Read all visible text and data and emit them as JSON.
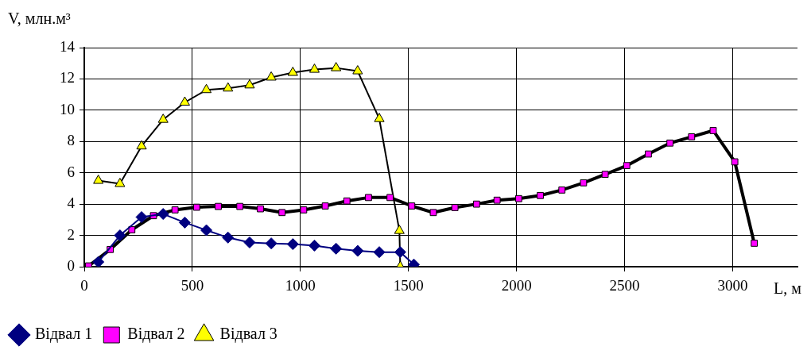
{
  "chart_data": {
    "type": "line",
    "ylabel": "V, млн.м³",
    "xlabel": "L, м",
    "xlim": [
      0,
      3300
    ],
    "xticks": [
      0,
      500,
      1000,
      1500,
      2000,
      2500,
      3000
    ],
    "ylim": [
      0,
      14
    ],
    "yticks": [
      0,
      2,
      4,
      6,
      8,
      10,
      12,
      14
    ],
    "grid": true,
    "legend": "bottom left",
    "series": [
      {
        "name": "Відвал 1",
        "color": "#000080",
        "marker": "diamond",
        "x": [
          65,
          165,
          265,
          365,
          465,
          565,
          665,
          765,
          865,
          965,
          1065,
          1165,
          1265,
          1365,
          1462,
          1525
        ],
        "values": [
          0.3,
          2.0,
          3.17,
          3.37,
          2.82,
          2.33,
          1.86,
          1.55,
          1.49,
          1.44,
          1.35,
          1.15,
          1.01,
          0.93,
          0.93,
          0.14
        ]
      },
      {
        "name": "Відвал 2",
        "color": "#ff00ff",
        "marker": "square",
        "x": [
          20,
          120,
          220,
          320,
          420,
          520,
          620,
          720,
          815,
          915,
          1015,
          1115,
          1215,
          1315,
          1415,
          1515,
          1615,
          1715,
          1815,
          1910,
          2010,
          2110,
          2210,
          2310,
          2410,
          2510,
          2610,
          2710,
          2810,
          2910,
          3010,
          3100
        ],
        "values": [
          0.05,
          1.1,
          2.36,
          3.26,
          3.63,
          3.8,
          3.85,
          3.85,
          3.7,
          3.46,
          3.63,
          3.88,
          4.2,
          4.42,
          4.42,
          3.88,
          3.46,
          3.78,
          4.0,
          4.25,
          4.35,
          4.55,
          4.9,
          5.36,
          5.9,
          6.46,
          7.2,
          7.9,
          8.3,
          8.7,
          6.7,
          1.5
        ]
      },
      {
        "name": "Відвал 3",
        "color": "#ffff00",
        "marker": "triangle",
        "x": [
          65,
          165,
          265,
          365,
          465,
          565,
          665,
          765,
          865,
          965,
          1065,
          1165,
          1265,
          1365,
          1458,
          1462
        ],
        "values": [
          5.5,
          5.3,
          7.7,
          9.4,
          10.5,
          11.3,
          11.4,
          11.6,
          12.1,
          12.4,
          12.6,
          12.7,
          12.5,
          9.45,
          2.3,
          0
        ]
      }
    ]
  }
}
